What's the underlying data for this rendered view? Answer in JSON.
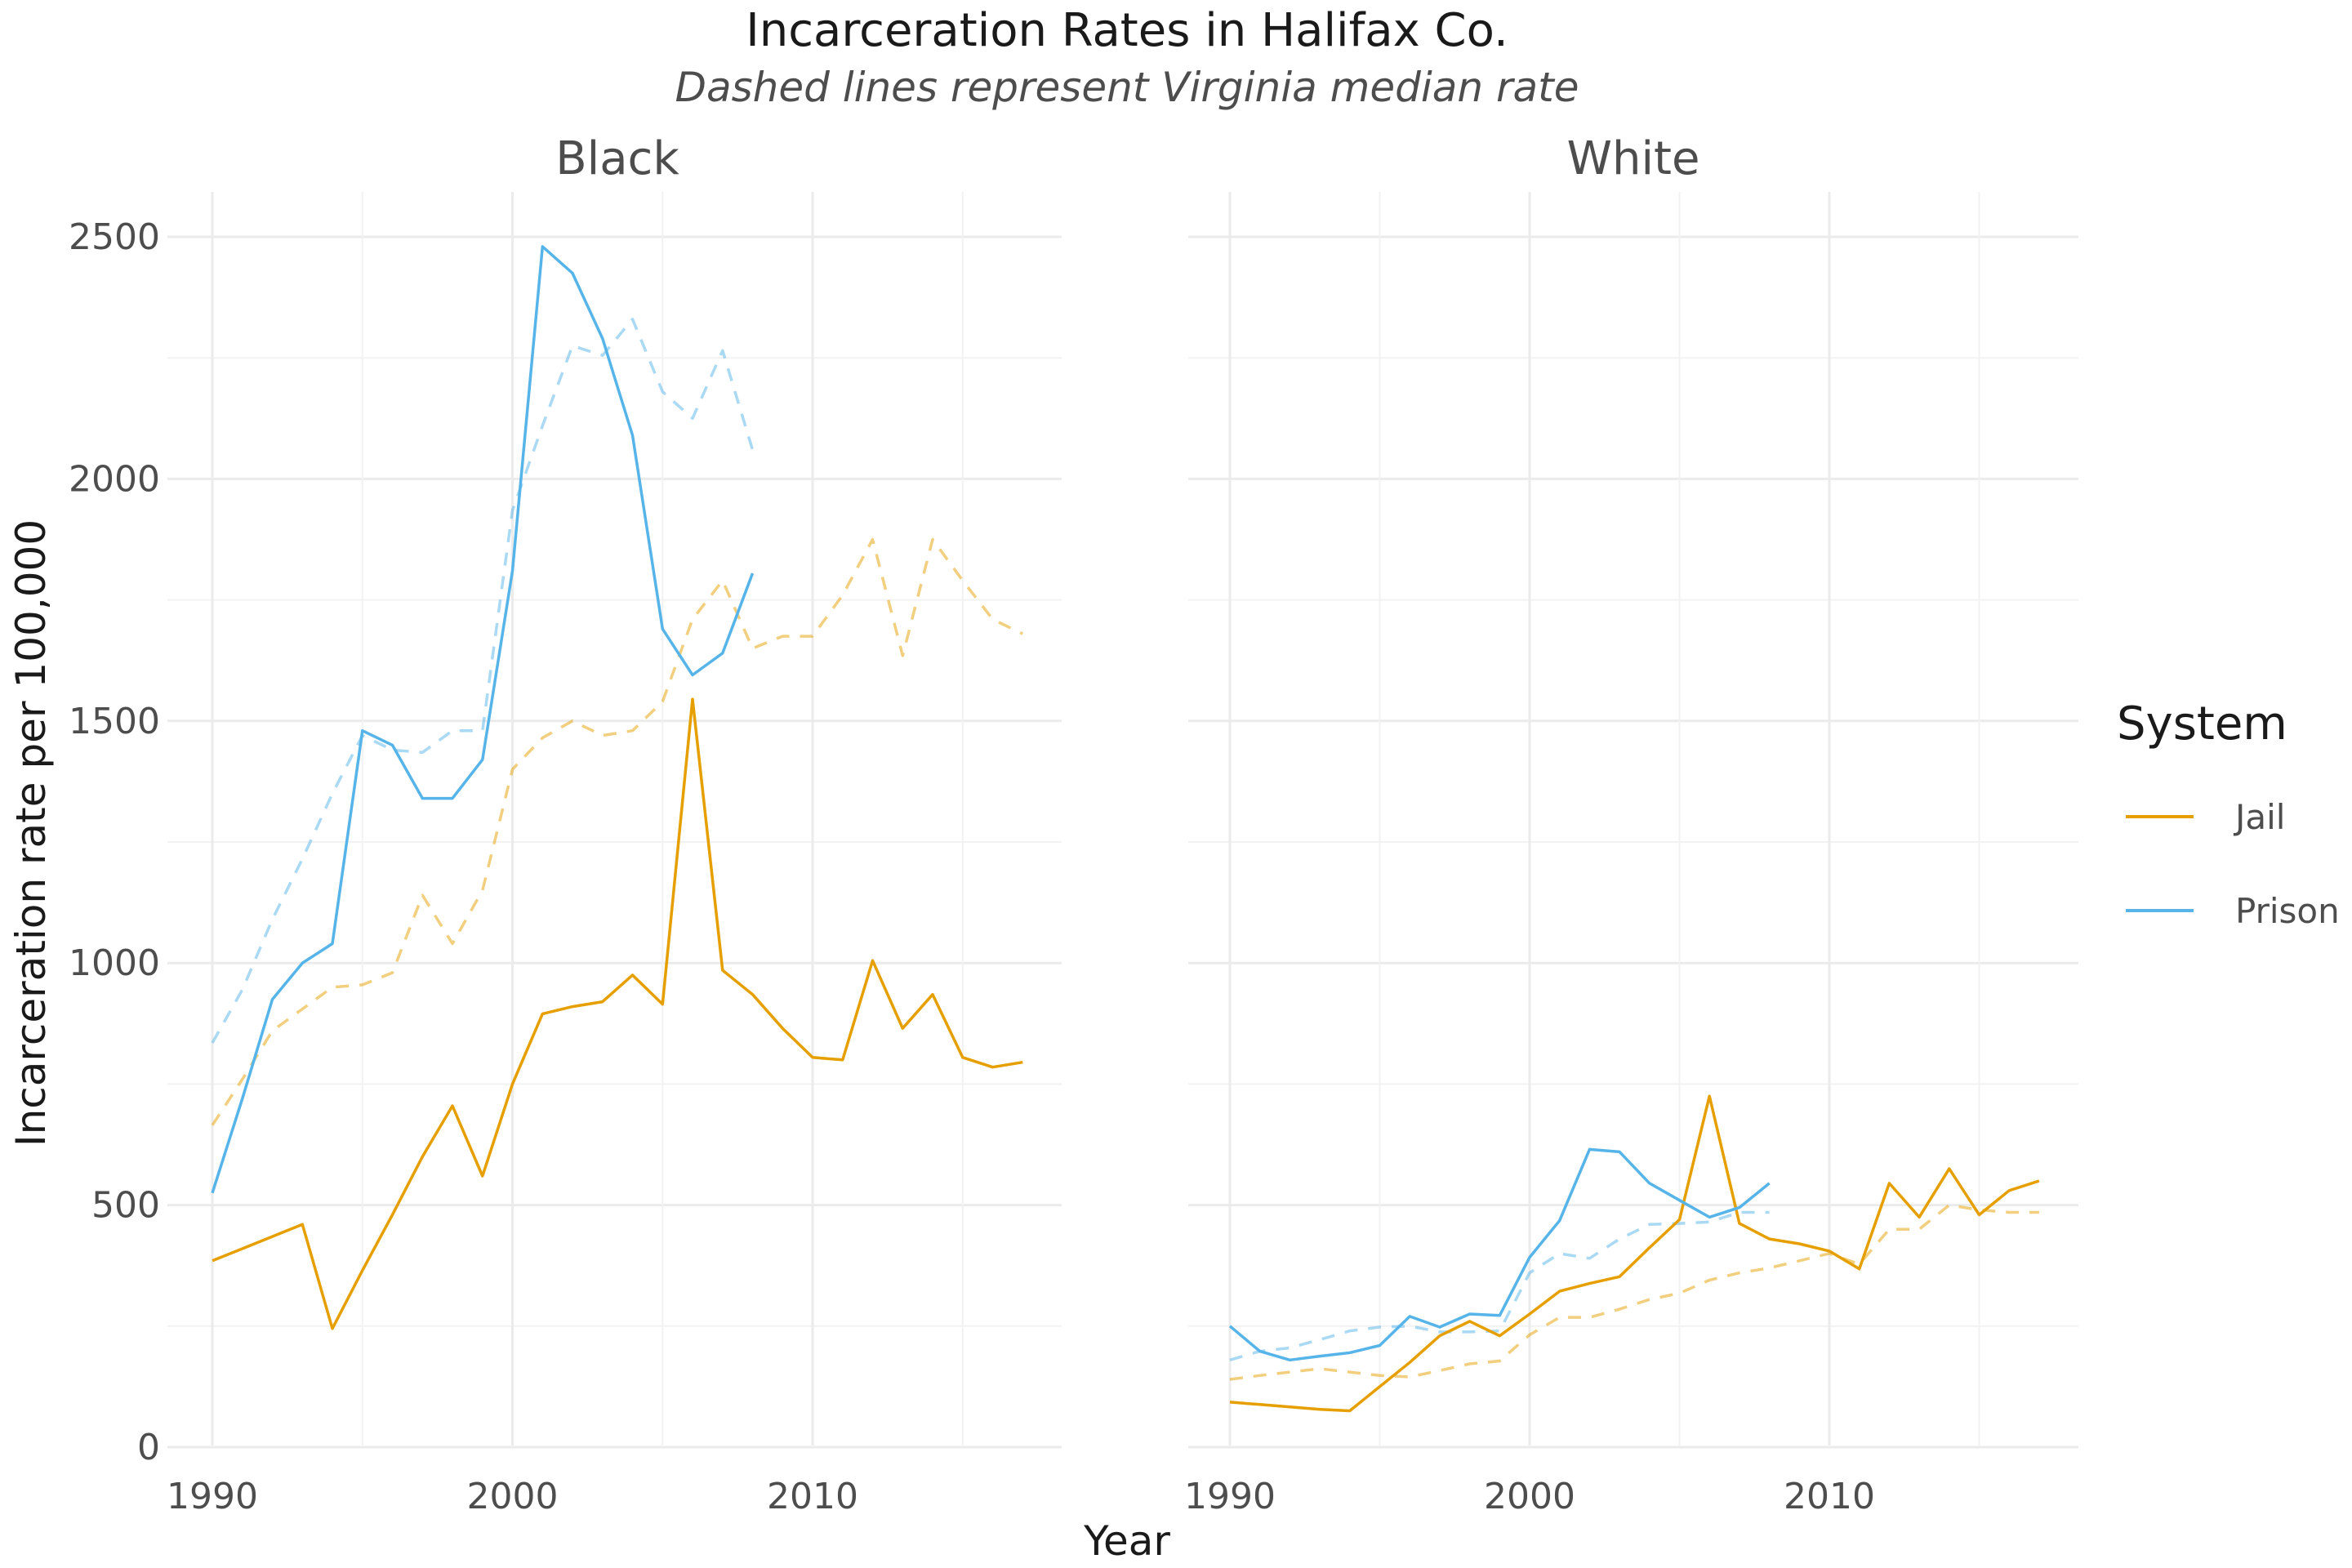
{
  "title": "Incarceration Rates in Halifax Co.",
  "subtitle": "Dashed lines represent Virginia median rate",
  "colors": {
    "jail": "#E69F00",
    "prison": "#56B4E9",
    "grid": "#ebebeb",
    "text": "#4d4d4d"
  },
  "chart_data": {
    "type": "line",
    "xlabel": "Year",
    "ylabel": "Incarceration rate per 100,000",
    "xlim": [
      1990,
      2017
    ],
    "ylim": [
      0,
      2600
    ],
    "x_ticks": [
      1990,
      2000,
      2010
    ],
    "y_ticks": [
      0,
      500,
      1000,
      1500,
      2000,
      2500
    ],
    "grid": true,
    "legend": {
      "title": "System",
      "position": "right",
      "entries": [
        "Jail",
        "Prison"
      ]
    },
    "panels": [
      {
        "label": "Black",
        "series": [
          {
            "name": "Jail",
            "style": "solid",
            "x": [
              1990,
              1991,
              1992,
              1993,
              1994,
              1995,
              1996,
              1997,
              1998,
              1999,
              2000,
              2001,
              2002,
              2003,
              2004,
              2005,
              2006,
              2007,
              2008,
              2009,
              2010,
              2011,
              2012,
              2013,
              2014,
              2015,
              2016,
              2017
            ],
            "values": [
              385,
              410,
              435,
              460,
              245,
              365,
              480,
              600,
              705,
              560,
              750,
              895,
              910,
              920,
              975,
              915,
              1545,
              985,
              935,
              865,
              805,
              800,
              1005,
              865,
              935,
              805,
              785,
              795
            ]
          },
          {
            "name": "Prison",
            "style": "solid",
            "x": [
              1990,
              1991,
              1992,
              1993,
              1994,
              1995,
              1996,
              1997,
              1998,
              1999,
              2000,
              2001,
              2002,
              2003,
              2004,
              2005,
              2006,
              2007,
              2008
            ],
            "values": [
              525,
              720,
              925,
              1000,
              1040,
              1480,
              1450,
              1340,
              1340,
              1420,
              1810,
              2480,
              2425,
              2290,
              2090,
              1690,
              1595,
              1640,
              1805
            ]
          },
          {
            "name": "Jail",
            "style": "dashed",
            "x": [
              1990,
              1991,
              1992,
              1993,
              1994,
              1995,
              1996,
              1997,
              1998,
              1999,
              2000,
              2001,
              2002,
              2003,
              2004,
              2005,
              2006,
              2007,
              2008,
              2009,
              2010,
              2011,
              2012,
              2013,
              2014,
              2015,
              2016,
              2017
            ],
            "values": [
              665,
              760,
              860,
              905,
              950,
              955,
              980,
              1140,
              1040,
              1150,
              1400,
              1465,
              1500,
              1470,
              1480,
              1540,
              1710,
              1790,
              1650,
              1675,
              1675,
              1760,
              1875,
              1635,
              1875,
              1790,
              1710,
              1680
            ]
          },
          {
            "name": "Prison",
            "style": "dashed",
            "x": [
              1990,
              1991,
              1992,
              1993,
              1994,
              1995,
              1996,
              1997,
              1998,
              1999,
              2000,
              2001,
              2002,
              2003,
              2004,
              2005,
              2006,
              2007,
              2008
            ],
            "values": [
              835,
              945,
              1090,
              1215,
              1350,
              1470,
              1440,
              1435,
              1480,
              1480,
              1935,
              2110,
              2275,
              2255,
              2330,
              2180,
              2125,
              2265,
              2060
            ]
          }
        ]
      },
      {
        "label": "White",
        "series": [
          {
            "name": "Jail",
            "style": "solid",
            "x": [
              1990,
              1991,
              1992,
              1993,
              1994,
              1995,
              1996,
              1997,
              1998,
              1999,
              2000,
              2001,
              2002,
              2003,
              2004,
              2005,
              2006,
              2007,
              2008,
              2009,
              2010,
              2011,
              2012,
              2013,
              2014,
              2015,
              2016,
              2017
            ],
            "values": [
              93,
              88,
              83,
              78,
              75,
              125,
              175,
              230,
              260,
              230,
              275,
              322,
              338,
              352,
              412,
              470,
              725,
              462,
              430,
              420,
              405,
              368,
              545,
              475,
              575,
              480,
              530,
              550
            ]
          },
          {
            "name": "Prison",
            "style": "solid",
            "x": [
              1990,
              1991,
              1992,
              1993,
              1994,
              1995,
              1996,
              1997,
              1998,
              1999,
              2000,
              2001,
              2002,
              2003,
              2004,
              2005,
              2006,
              2007,
              2008
            ],
            "values": [
              250,
              198,
              180,
              188,
              195,
              210,
              270,
              248,
              275,
              272,
              392,
              468,
              615,
              610,
              545,
              510,
              475,
              495,
              545
            ]
          },
          {
            "name": "Jail",
            "style": "dashed",
            "x": [
              1990,
              1991,
              1992,
              1993,
              1994,
              1995,
              1996,
              1997,
              1998,
              1999,
              2000,
              2001,
              2002,
              2003,
              2004,
              2005,
              2006,
              2007,
              2008,
              2009,
              2010,
              2011,
              2012,
              2013,
              2014,
              2015,
              2016,
              2017
            ],
            "values": [
              140,
              148,
              155,
              162,
              155,
              148,
              145,
              158,
              172,
              178,
              232,
              268,
              268,
              285,
              305,
              318,
              345,
              360,
              370,
              385,
              400,
              378,
              450,
              450,
              500,
              490,
              485,
              485
            ]
          },
          {
            "name": "Prison",
            "style": "dashed",
            "x": [
              1990,
              1991,
              1992,
              1993,
              1994,
              1995,
              1996,
              1997,
              1998,
              1999,
              2000,
              2001,
              2002,
              2003,
              2004,
              2005,
              2006,
              2007,
              2008
            ],
            "values": [
              180,
              198,
              205,
              222,
              240,
              248,
              250,
              238,
              238,
              240,
              360,
              400,
              390,
              430,
              460,
              462,
              465,
              485,
              485
            ]
          }
        ]
      }
    ]
  }
}
